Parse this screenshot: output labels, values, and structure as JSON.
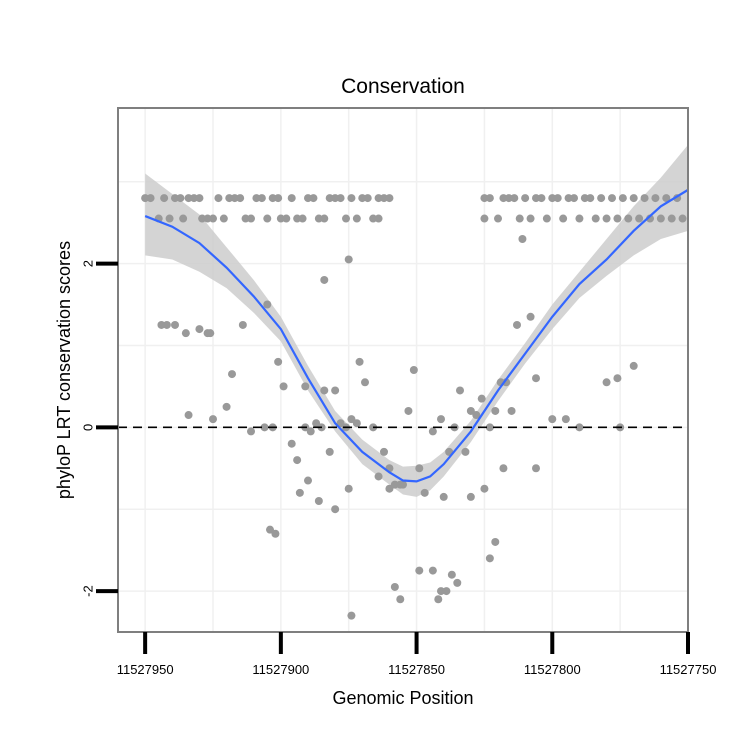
{
  "chart_data": {
    "type": "scatter",
    "title": "Conservation",
    "xlabel": "Genomic Position",
    "ylabel": "phyloP LRT conservation scores",
    "xlim": [
      11527960,
      11527750
    ],
    "ylim": [
      -2.5,
      3.9
    ],
    "x_reversed": true,
    "grid": true,
    "x_ticks": [
      11527950,
      11527900,
      11527850,
      11527800,
      11527750
    ],
    "x_tick_labels": [
      "11527950",
      "11527900",
      "11527850",
      "11527800",
      "11527750"
    ],
    "y_ticks": [
      -2,
      0,
      2
    ],
    "y_tick_labels": [
      "-2",
      "0",
      "2"
    ],
    "reference_line": {
      "y": 0,
      "style": "dashed"
    },
    "colors": {
      "points": "#999999",
      "smooth": "#3366ff",
      "band": "#cccccc",
      "reference": "#000000",
      "frame": "#7f7f7f",
      "grid": "#f0f0f0"
    },
    "series": [
      {
        "name": "scores",
        "kind": "points",
        "points": [
          [
            11527950,
            2.8
          ],
          [
            11527948,
            2.8
          ],
          [
            11527945,
            2.55
          ],
          [
            11527943,
            2.8
          ],
          [
            11527941,
            2.55
          ],
          [
            11527939,
            2.8
          ],
          [
            11527937,
            2.8
          ],
          [
            11527936,
            2.55
          ],
          [
            11527934,
            2.8
          ],
          [
            11527932,
            2.8
          ],
          [
            11527930,
            2.8
          ],
          [
            11527929,
            2.55
          ],
          [
            11527927,
            2.55
          ],
          [
            11527925,
            2.55
          ],
          [
            11527923,
            2.8
          ],
          [
            11527921,
            2.55
          ],
          [
            11527919,
            2.8
          ],
          [
            11527917,
            2.8
          ],
          [
            11527915,
            2.8
          ],
          [
            11527913,
            2.55
          ],
          [
            11527911,
            2.55
          ],
          [
            11527909,
            2.8
          ],
          [
            11527907,
            2.8
          ],
          [
            11527905,
            2.55
          ],
          [
            11527903,
            2.8
          ],
          [
            11527901,
            2.8
          ],
          [
            11527900,
            2.55
          ],
          [
            11527898,
            2.55
          ],
          [
            11527896,
            2.8
          ],
          [
            11527894,
            2.55
          ],
          [
            11527892,
            2.55
          ],
          [
            11527890,
            2.8
          ],
          [
            11527888,
            2.8
          ],
          [
            11527886,
            2.55
          ],
          [
            11527884,
            2.55
          ],
          [
            11527882,
            2.8
          ],
          [
            11527880,
            2.8
          ],
          [
            11527878,
            2.8
          ],
          [
            11527876,
            2.55
          ],
          [
            11527874,
            2.8
          ],
          [
            11527872,
            2.55
          ],
          [
            11527870,
            2.8
          ],
          [
            11527868,
            2.8
          ],
          [
            11527866,
            2.55
          ],
          [
            11527864,
            2.8
          ],
          [
            11527862,
            2.8
          ],
          [
            11527860,
            2.8
          ],
          [
            11527944,
            1.25
          ],
          [
            11527942,
            1.25
          ],
          [
            11527939,
            1.25
          ],
          [
            11527935,
            1.15
          ],
          [
            11527930,
            1.2
          ],
          [
            11527927,
            1.15
          ],
          [
            11527926,
            1.15
          ],
          [
            11527918,
            0.65
          ],
          [
            11527914,
            1.25
          ],
          [
            11527905,
            1.5
          ],
          [
            11527901,
            0.8
          ],
          [
            11527891,
            0.5
          ],
          [
            11527875,
            2.05
          ],
          [
            11527871,
            0.8
          ],
          [
            11527884,
            1.8
          ],
          [
            11527864,
            2.55
          ],
          [
            11527934,
            0.15
          ],
          [
            11527925,
            0.1
          ],
          [
            11527920,
            0.25
          ],
          [
            11527911,
            -0.05
          ],
          [
            11527906,
            0.0
          ],
          [
            11527903,
            0.0
          ],
          [
            11527899,
            0.5
          ],
          [
            11527896,
            -0.2
          ],
          [
            11527894,
            -0.4
          ],
          [
            11527891,
            0.0
          ],
          [
            11527889,
            -0.05
          ],
          [
            11527887,
            0.05
          ],
          [
            11527885,
            0.0
          ],
          [
            11527884,
            0.45
          ],
          [
            11527882,
            -0.3
          ],
          [
            11527880,
            0.45
          ],
          [
            11527878,
            0.05
          ],
          [
            11527876,
            0.0
          ],
          [
            11527874,
            0.1
          ],
          [
            11527872,
            0.05
          ],
          [
            11527869,
            0.55
          ],
          [
            11527866,
            0.0
          ],
          [
            11527864,
            -0.6
          ],
          [
            11527862,
            -0.3
          ],
          [
            11527860,
            -0.5
          ],
          [
            11527858,
            -0.7
          ],
          [
            11527856,
            -0.7
          ],
          [
            11527853,
            0.2
          ],
          [
            11527851,
            0.7
          ],
          [
            11527849,
            -0.5
          ],
          [
            11527847,
            -0.8
          ],
          [
            11527844,
            -0.05
          ],
          [
            11527841,
            0.1
          ],
          [
            11527838,
            -0.3
          ],
          [
            11527836,
            0.0
          ],
          [
            11527834,
            0.45
          ],
          [
            11527832,
            -0.3
          ],
          [
            11527830,
            0.2
          ],
          [
            11527828,
            0.15
          ],
          [
            11527826,
            0.35
          ],
          [
            11527823,
            0.0
          ],
          [
            11527821,
            0.2
          ],
          [
            11527819,
            0.55
          ],
          [
            11527817,
            0.55
          ],
          [
            11527815,
            0.2
          ],
          [
            11527813,
            1.25
          ],
          [
            11527811,
            2.3
          ],
          [
            11527808,
            1.35
          ],
          [
            11527806,
            0.6
          ],
          [
            11527800,
            0.1
          ],
          [
            11527795,
            0.1
          ],
          [
            11527790,
            0.0
          ],
          [
            11527780,
            0.55
          ],
          [
            11527776,
            0.6
          ],
          [
            11527775,
            0.0
          ],
          [
            11527770,
            0.75
          ],
          [
            11527904,
            -1.25
          ],
          [
            11527902,
            -1.3
          ],
          [
            11527893,
            -0.8
          ],
          [
            11527890,
            -0.65
          ],
          [
            11527886,
            -0.9
          ],
          [
            11527880,
            -1.0
          ],
          [
            11527875,
            -0.75
          ],
          [
            11527860,
            -0.75
          ],
          [
            11527855,
            -0.7
          ],
          [
            11527840,
            -0.85
          ],
          [
            11527825,
            -0.75
          ],
          [
            11527818,
            -0.5
          ],
          [
            11527806,
            -0.5
          ],
          [
            11527874,
            -2.3
          ],
          [
            11527858,
            -1.95
          ],
          [
            11527856,
            -2.1
          ],
          [
            11527849,
            -1.75
          ],
          [
            11527844,
            -1.75
          ],
          [
            11527842,
            -2.1
          ],
          [
            11527841,
            -2.0
          ],
          [
            11527839,
            -2.0
          ],
          [
            11527837,
            -1.8
          ],
          [
            11527835,
            -1.9
          ],
          [
            11527830,
            -0.85
          ],
          [
            11527823,
            -1.6
          ],
          [
            11527821,
            -1.4
          ],
          [
            11527825,
            2.55
          ],
          [
            11527825,
            2.8
          ],
          [
            11527823,
            2.8
          ],
          [
            11527820,
            2.55
          ],
          [
            11527818,
            2.8
          ],
          [
            11527816,
            2.8
          ],
          [
            11527814,
            2.8
          ],
          [
            11527812,
            2.55
          ],
          [
            11527810,
            2.8
          ],
          [
            11527808,
            2.55
          ],
          [
            11527806,
            2.8
          ],
          [
            11527804,
            2.8
          ],
          [
            11527802,
            2.55
          ],
          [
            11527800,
            2.8
          ],
          [
            11527798,
            2.8
          ],
          [
            11527796,
            2.55
          ],
          [
            11527794,
            2.8
          ],
          [
            11527792,
            2.8
          ],
          [
            11527790,
            2.55
          ],
          [
            11527788,
            2.8
          ],
          [
            11527786,
            2.8
          ],
          [
            11527784,
            2.55
          ],
          [
            11527782,
            2.8
          ],
          [
            11527780,
            2.55
          ],
          [
            11527778,
            2.8
          ],
          [
            11527776,
            2.55
          ],
          [
            11527774,
            2.8
          ],
          [
            11527772,
            2.55
          ],
          [
            11527770,
            2.8
          ],
          [
            11527768,
            2.55
          ],
          [
            11527766,
            2.8
          ],
          [
            11527764,
            2.55
          ],
          [
            11527762,
            2.8
          ],
          [
            11527760,
            2.55
          ],
          [
            11527758,
            2.8
          ],
          [
            11527756,
            2.55
          ],
          [
            11527754,
            2.8
          ],
          [
            11527752,
            2.55
          ]
        ]
      },
      {
        "name": "loess fit",
        "kind": "smooth",
        "x": [
          11527950,
          11527940,
          11527930,
          11527920,
          11527910,
          11527900,
          11527890,
          11527880,
          11527870,
          11527860,
          11527855,
          11527850,
          11527845,
          11527840,
          11527830,
          11527820,
          11527810,
          11527800,
          11527790,
          11527780,
          11527770,
          11527760,
          11527750
        ],
        "y": [
          2.58,
          2.45,
          2.25,
          1.95,
          1.6,
          1.2,
          0.6,
          0.05,
          -0.3,
          -0.55,
          -0.65,
          -0.66,
          -0.6,
          -0.45,
          -0.05,
          0.45,
          0.9,
          1.35,
          1.75,
          2.05,
          2.4,
          2.7,
          2.9
        ],
        "lower": [
          2.1,
          2.05,
          1.9,
          1.7,
          1.4,
          1.05,
          0.45,
          -0.05,
          -0.45,
          -0.7,
          -0.82,
          -0.85,
          -0.77,
          -0.6,
          -0.18,
          0.32,
          0.78,
          1.2,
          1.58,
          1.85,
          2.1,
          2.3,
          2.4
        ],
        "upper": [
          3.1,
          2.85,
          2.6,
          2.2,
          1.8,
          1.35,
          0.75,
          0.2,
          -0.15,
          -0.4,
          -0.48,
          -0.47,
          -0.43,
          -0.3,
          0.08,
          0.58,
          1.03,
          1.5,
          1.9,
          2.3,
          2.7,
          3.05,
          3.45
        ]
      }
    ]
  }
}
